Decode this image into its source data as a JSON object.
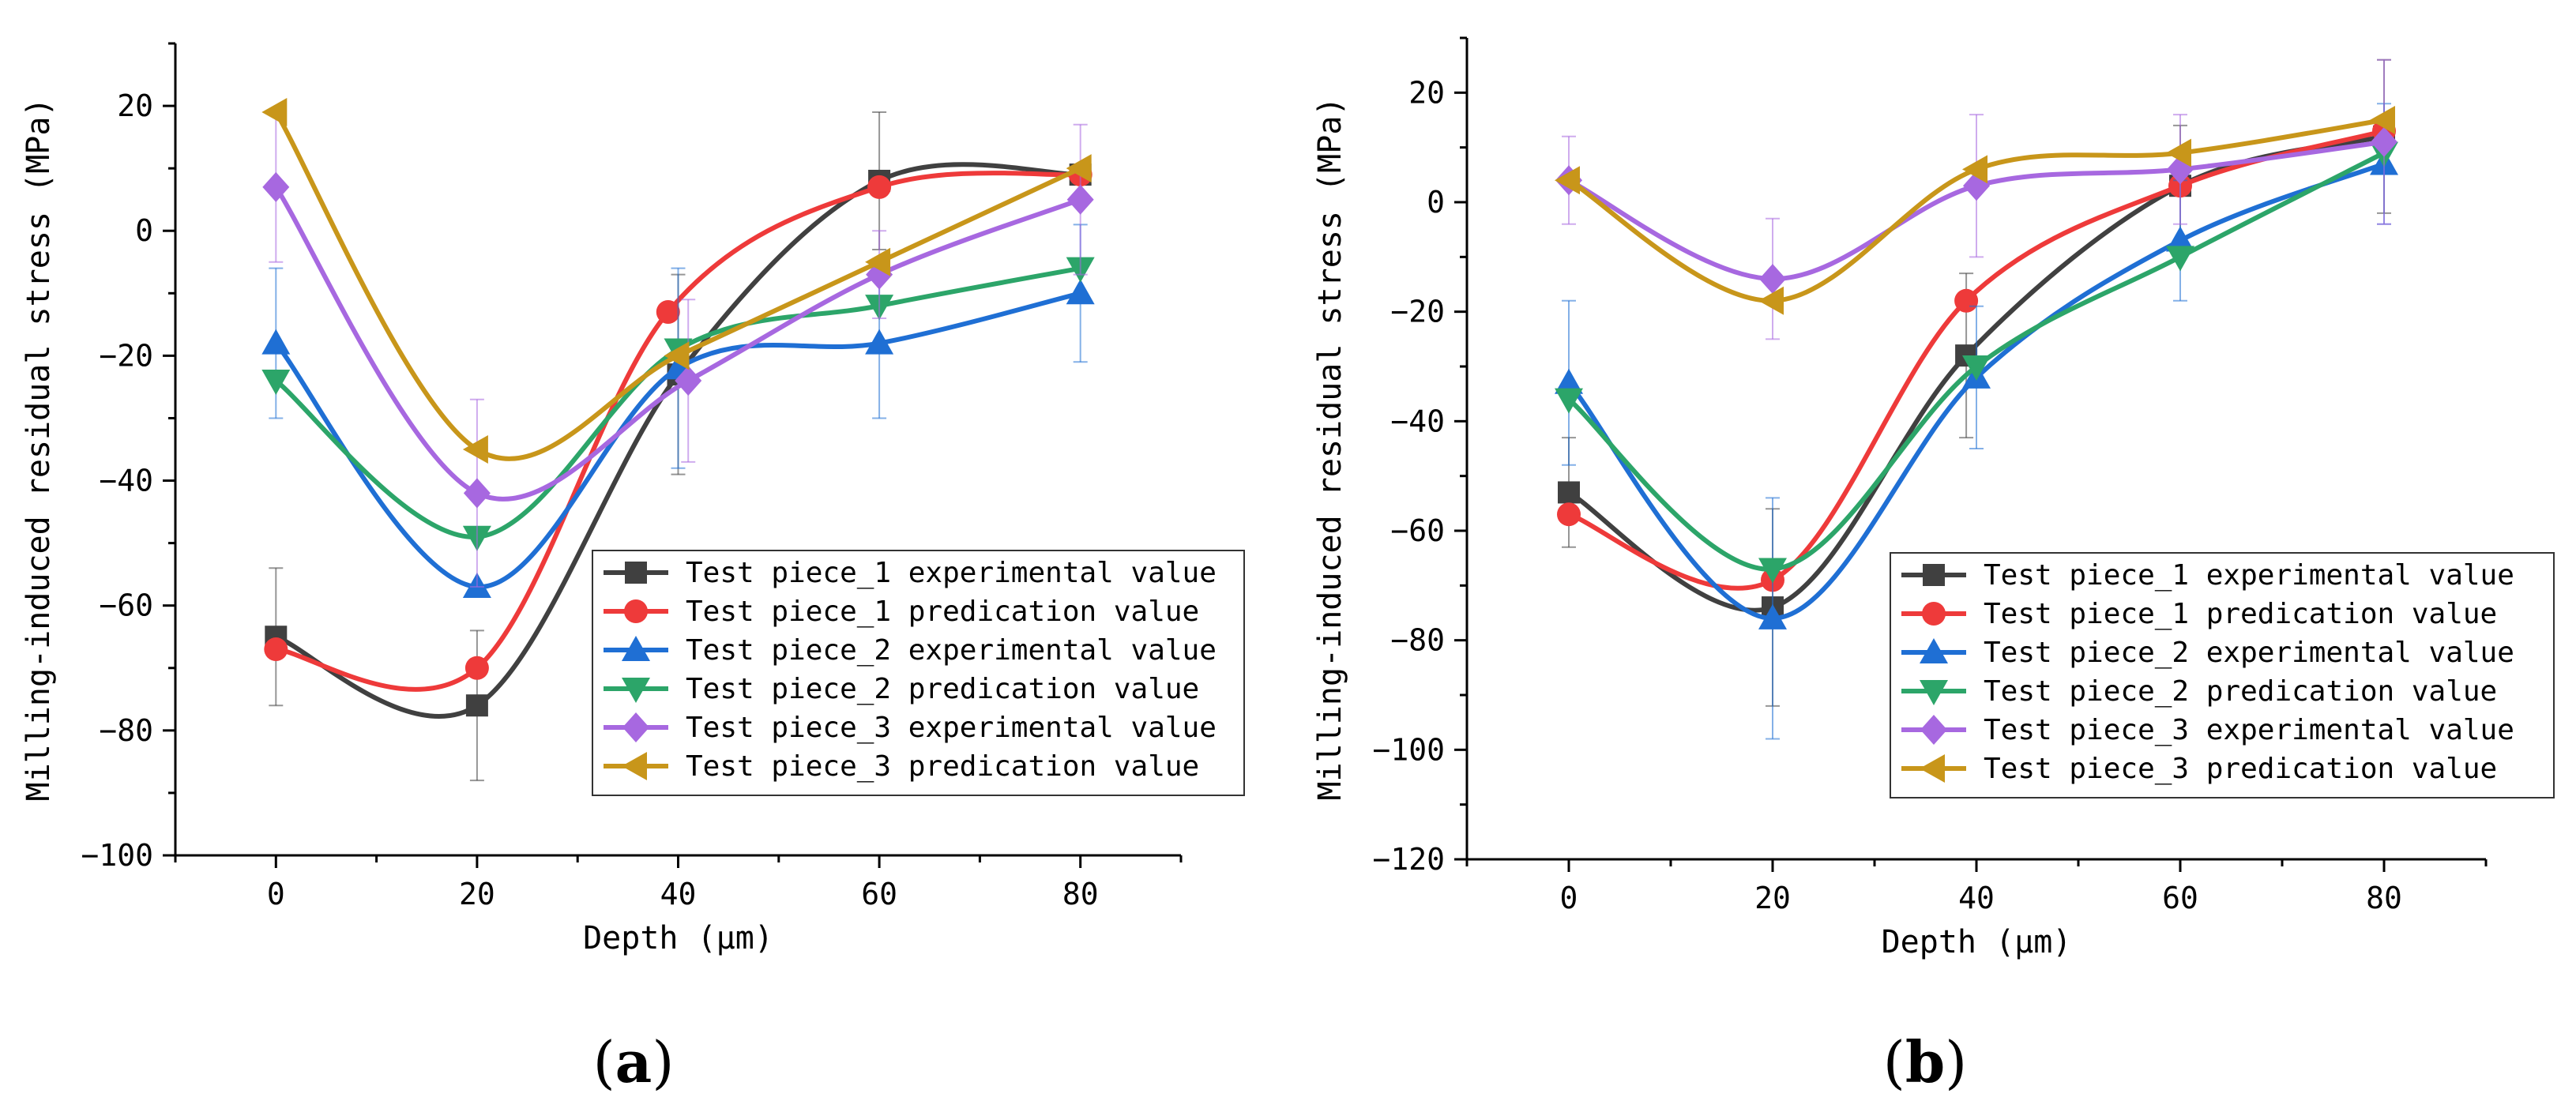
{
  "chart_data": [
    {
      "type": "line",
      "panel": "a",
      "xlabel": "Depth (μm)",
      "ylabel": "Milling-induced residual stress (MPa)",
      "xlim": [
        -10,
        90
      ],
      "ylim": [
        -100,
        30
      ],
      "xticks": [
        0,
        20,
        40,
        60,
        80
      ],
      "yticks": [
        -100,
        -80,
        -60,
        -40,
        -20,
        0,
        20
      ],
      "legend_position": "center-right",
      "series": [
        {
          "name": "Test piece_1 experimental value",
          "color": "#404040",
          "marker": "square",
          "x": [
            0,
            20,
            40,
            60,
            80
          ],
          "y": [
            -65,
            -76,
            -23,
            8,
            9
          ],
          "err": [
            11,
            12,
            16,
            11,
            0
          ]
        },
        {
          "name": "Test piece_1 predication value",
          "color": "#ee3a3a",
          "marker": "circle",
          "x": [
            0,
            20,
            39,
            60,
            80
          ],
          "y": [
            -67,
            -70,
            -13,
            7,
            9
          ],
          "err": [
            0,
            0,
            0,
            0,
            0
          ]
        },
        {
          "name": "Test piece_2 experimental value",
          "color": "#1f6fd4",
          "marker": "triangle-up",
          "x": [
            0,
            20,
            40,
            60,
            80
          ],
          "y": [
            -18,
            -57,
            -22,
            -18,
            -10
          ],
          "err": [
            12,
            0,
            16,
            12,
            11
          ]
        },
        {
          "name": "Test piece_2 predication value",
          "color": "#2ca569",
          "marker": "triangle-down",
          "x": [
            0,
            20,
            40,
            60,
            80
          ],
          "y": [
            -24,
            -49,
            -19,
            -12,
            -6
          ],
          "err": [
            0,
            0,
            0,
            0,
            0
          ]
        },
        {
          "name": "Test piece_3 experimental value",
          "color": "#a768e0",
          "marker": "diamond",
          "x": [
            0,
            20,
            41,
            60,
            80
          ],
          "y": [
            7,
            -42,
            -24,
            -7,
            5
          ],
          "err": [
            12,
            15,
            13,
            7,
            12
          ]
        },
        {
          "name": "Test piece_3 predication value",
          "color": "#c8961a",
          "marker": "triangle-left",
          "x": [
            0,
            20,
            40,
            60,
            80
          ],
          "y": [
            19,
            -35,
            -20,
            -5,
            10
          ],
          "err": [
            0,
            0,
            0,
            0,
            0
          ]
        }
      ]
    },
    {
      "type": "line",
      "panel": "b",
      "xlabel": "Depth (μm)",
      "ylabel": "Milling-induced residual stress (MPa)",
      "xlim": [
        -10,
        90
      ],
      "ylim": [
        -120,
        30
      ],
      "xticks": [
        0,
        20,
        40,
        60,
        80
      ],
      "yticks": [
        -120,
        -100,
        -80,
        -60,
        -40,
        -20,
        0,
        20
      ],
      "legend_position": "center-right",
      "series": [
        {
          "name": "Test piece_1 experimental value",
          "color": "#404040",
          "marker": "square",
          "x": [
            0,
            20,
            39,
            60,
            80
          ],
          "y": [
            -53,
            -74,
            -28,
            3,
            12
          ],
          "err": [
            10,
            18,
            15,
            11,
            14
          ]
        },
        {
          "name": "Test piece_1 predication value",
          "color": "#ee3a3a",
          "marker": "circle",
          "x": [
            0,
            20,
            39,
            60,
            80
          ],
          "y": [
            -57,
            -69,
            -18,
            3,
            13
          ],
          "err": [
            0,
            0,
            0,
            0,
            0
          ]
        },
        {
          "name": "Test piece_2 experimental value",
          "color": "#1f6fd4",
          "marker": "triangle-up",
          "x": [
            0,
            20,
            40,
            60,
            80
          ],
          "y": [
            -33,
            -76,
            -32,
            -7,
            7
          ],
          "err": [
            15,
            22,
            13,
            11,
            11
          ]
        },
        {
          "name": "Test piece_2 predication value",
          "color": "#2ca569",
          "marker": "triangle-down",
          "x": [
            0,
            20,
            40,
            60,
            80
          ],
          "y": [
            -36,
            -67,
            -30,
            -10,
            9
          ],
          "err": [
            0,
            0,
            0,
            0,
            0
          ]
        },
        {
          "name": "Test piece_3 experimental value",
          "color": "#a768e0",
          "marker": "diamond",
          "x": [
            0,
            20,
            40,
            60,
            80
          ],
          "y": [
            4,
            -14,
            3,
            6,
            11
          ],
          "err": [
            8,
            11,
            13,
            10,
            15
          ]
        },
        {
          "name": "Test piece_3 predication value",
          "color": "#c8961a",
          "marker": "triangle-left",
          "x": [
            0,
            20,
            40,
            60,
            80
          ],
          "y": [
            4,
            -18,
            6,
            9,
            15
          ],
          "err": [
            0,
            0,
            0,
            0,
            0
          ]
        }
      ]
    }
  ],
  "panel_labels": {
    "a": "(a)",
    "a_letter": "a",
    "b": "(b)",
    "b_letter": "b"
  }
}
